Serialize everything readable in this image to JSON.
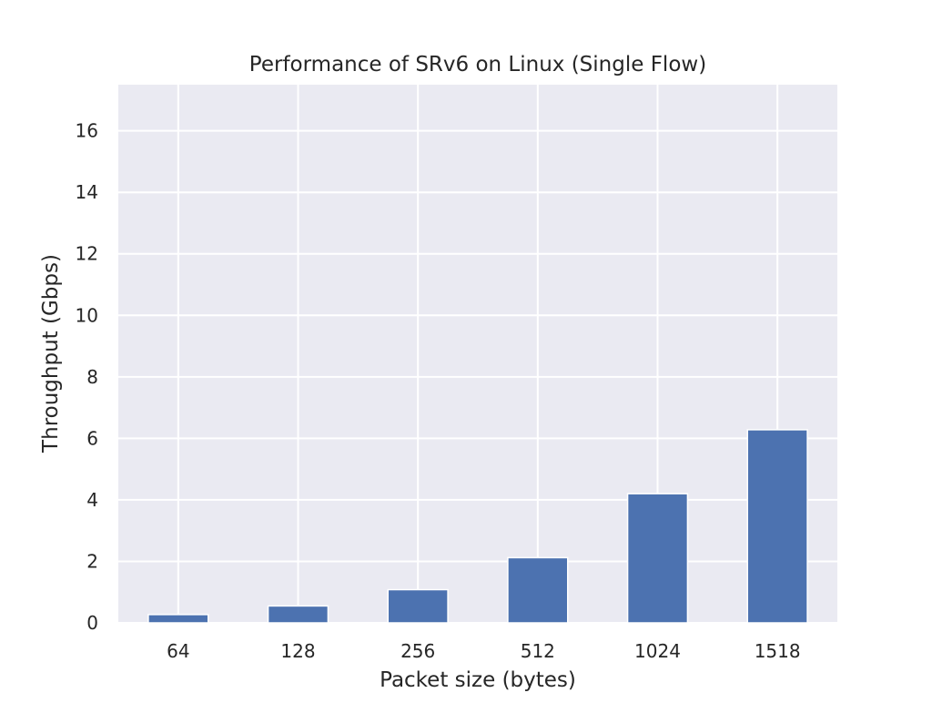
{
  "chart_data": {
    "type": "bar",
    "title": "Performance of SRv6 on Linux (Single Flow)",
    "xlabel": "Packet size (bytes)",
    "ylabel": "Throughput (Gbps)",
    "categories": [
      "64",
      "128",
      "256",
      "512",
      "1024",
      "1518"
    ],
    "values": [
      0.27,
      0.55,
      1.08,
      2.12,
      4.2,
      6.28
    ],
    "ylim": [
      0,
      17.5
    ],
    "yticks": [
      "0",
      "2",
      "4",
      "6",
      "8",
      "10",
      "12",
      "14",
      "16"
    ],
    "grid": true,
    "legend": "none",
    "colors": {
      "bar": "#4c72b0",
      "plot_background": "#eaeaf2",
      "grid": "#ffffff"
    }
  }
}
